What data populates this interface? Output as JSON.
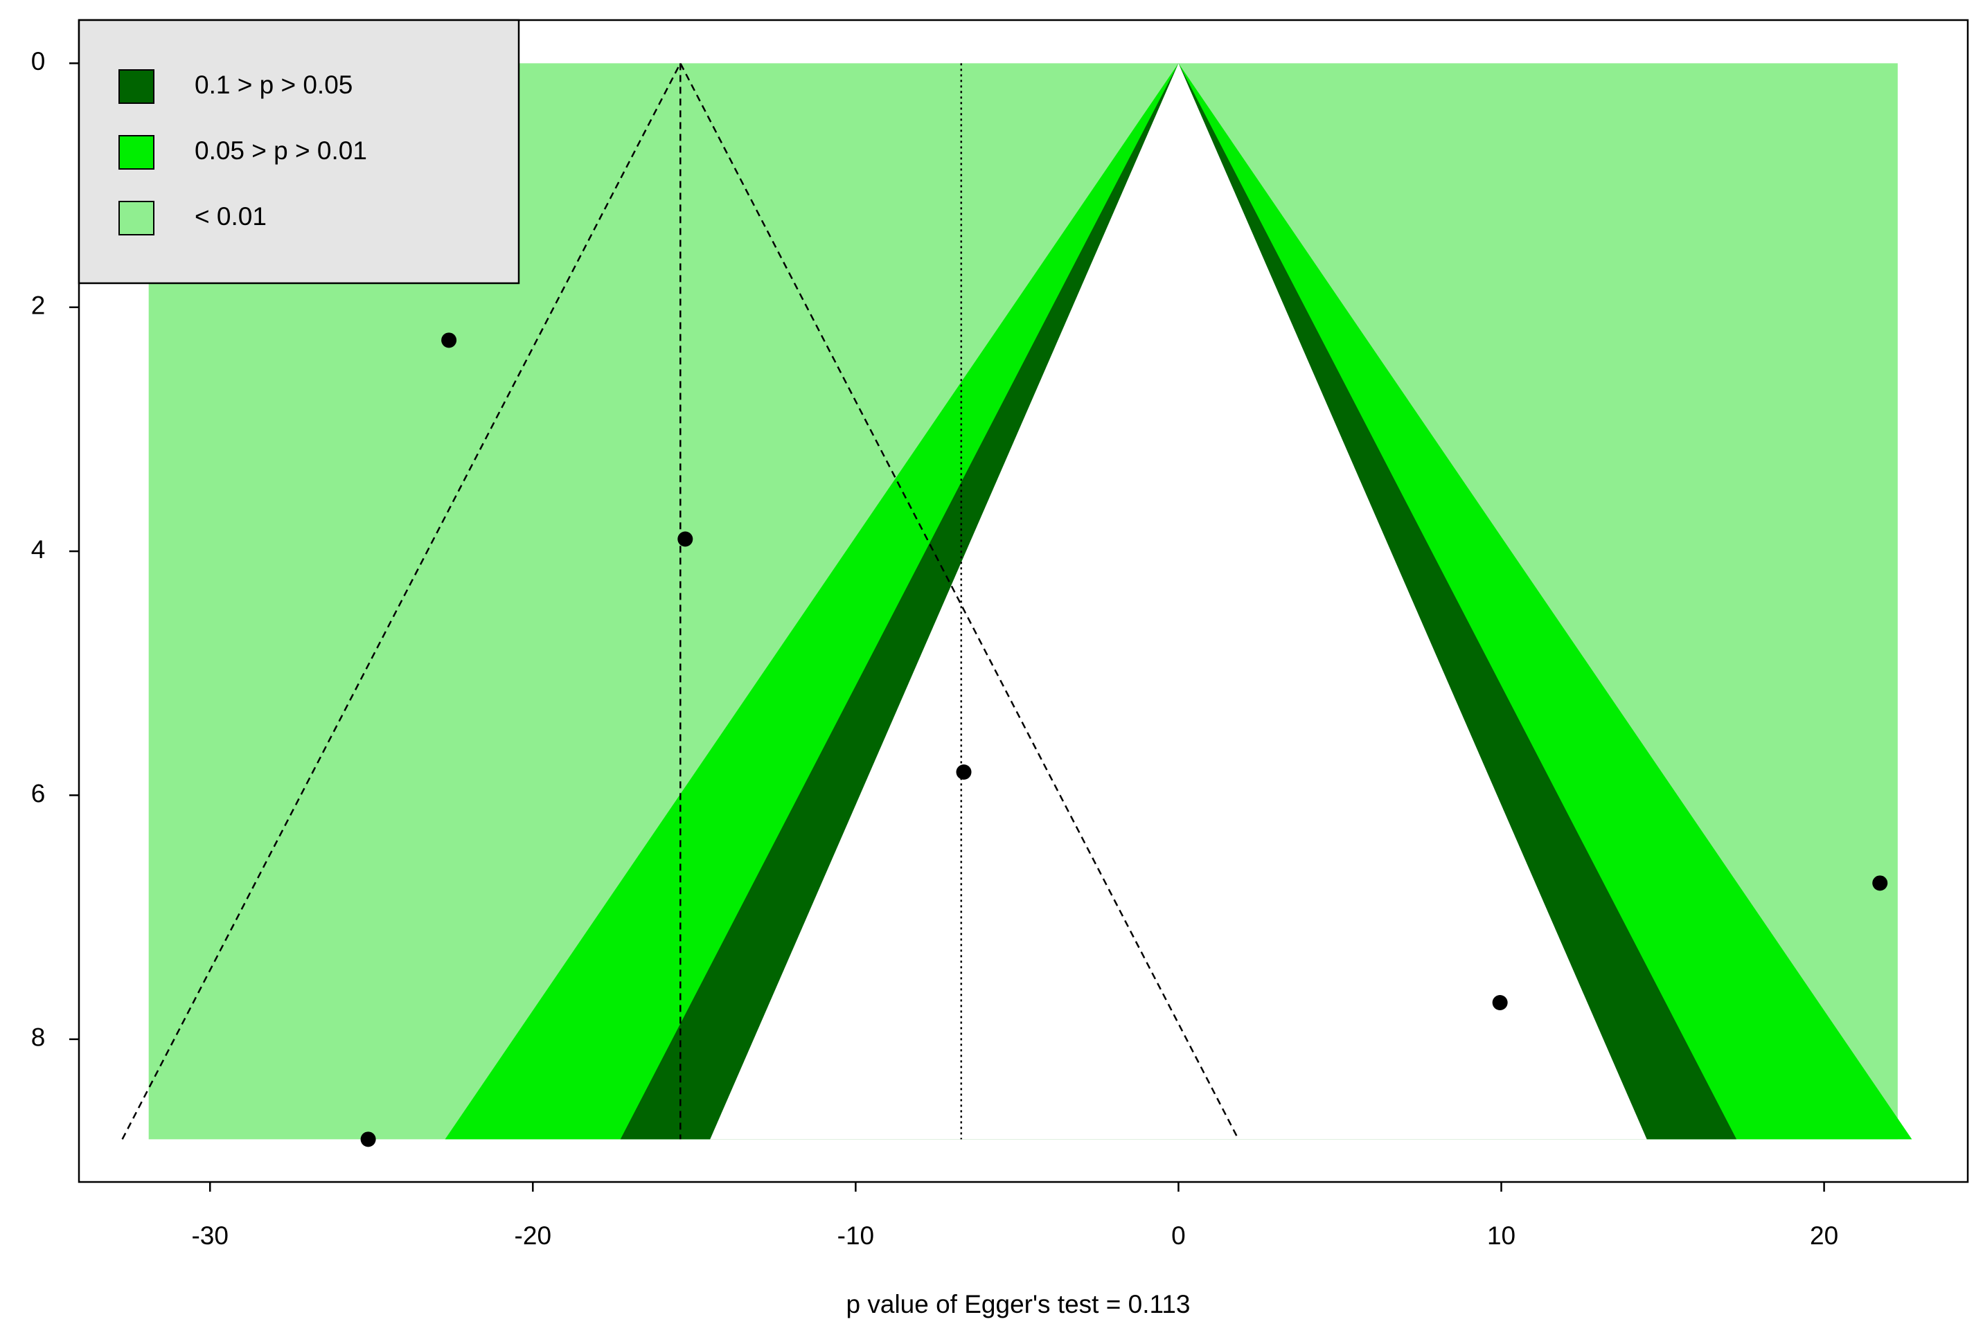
{
  "chart_data": {
    "type": "funnel",
    "xlabel": "p value of Egger's test = 0.113",
    "xlim": [
      -34.06,
      24.45
    ],
    "ylim": [
      -0.354,
      9.17
    ],
    "y_reversed": true,
    "xticks": [
      -30,
      -20,
      -10,
      0,
      10,
      20
    ],
    "yticks": [
      0,
      2,
      4,
      6,
      8
    ],
    "series": [
      {
        "name": "0.1 > p > 0.05",
        "color": "#006400",
        "z": 1.645
      },
      {
        "name": "0.05 > p > 0.01",
        "color": "#00ee00",
        "z": 1.96
      },
      {
        "name": "< 0.01",
        "color": "#90ee90",
        "z": 2.576
      }
    ],
    "shaded_x": [
      -31.9,
      22.28
    ],
    "se_max": 8.82,
    "pooled_estimate": -15.43,
    "reference_line": -6.73,
    "funnel_z": 1.96,
    "points": {
      "x": [
        -22.6,
        -15.28,
        -6.65,
        21.73,
        9.96,
        -25.1
      ],
      "y": [
        2.27,
        3.9,
        5.81,
        6.72,
        7.7,
        8.82
      ]
    },
    "legend": "top-left"
  }
}
